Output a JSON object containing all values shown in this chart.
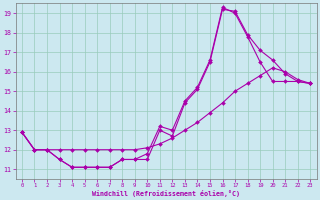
{
  "xlabel": "Windchill (Refroidissement éolien,°C)",
  "bg_color": "#cce8f0",
  "grid_color": "#99ccbb",
  "line_color": "#aa00aa",
  "xlim": [
    -0.5,
    23.5
  ],
  "ylim": [
    10.5,
    19.5
  ],
  "xticks": [
    0,
    1,
    2,
    3,
    4,
    5,
    6,
    7,
    8,
    9,
    10,
    11,
    12,
    13,
    14,
    15,
    16,
    17,
    18,
    19,
    20,
    21,
    22,
    23
  ],
  "yticks": [
    11,
    12,
    13,
    14,
    15,
    16,
    17,
    18,
    19
  ],
  "line1_x": [
    0,
    1,
    2,
    3,
    4,
    5,
    6,
    7,
    8,
    9,
    10,
    11,
    12,
    13,
    14,
    15,
    16,
    17,
    18,
    19,
    20,
    21,
    22,
    23
  ],
  "line1_y": [
    12.9,
    12.0,
    12.0,
    11.5,
    11.1,
    11.1,
    11.1,
    11.1,
    11.5,
    11.5,
    11.5,
    13.0,
    12.7,
    14.4,
    15.1,
    16.5,
    19.2,
    19.1,
    17.9,
    17.1,
    16.6,
    15.9,
    15.5,
    15.4
  ],
  "line2_x": [
    0,
    1,
    2,
    3,
    4,
    5,
    6,
    7,
    8,
    9,
    10,
    11,
    12,
    13,
    14,
    15,
    16,
    17,
    18,
    19,
    20,
    21,
    22,
    23
  ],
  "line2_y": [
    12.9,
    12.0,
    12.0,
    11.5,
    11.1,
    11.1,
    11.1,
    11.1,
    11.5,
    11.5,
    11.8,
    13.2,
    13.0,
    14.5,
    15.2,
    16.6,
    19.3,
    19.0,
    17.8,
    16.5,
    15.5,
    15.5,
    15.5,
    15.4
  ],
  "line3_x": [
    0,
    1,
    2,
    3,
    4,
    5,
    6,
    7,
    8,
    9,
    10,
    11,
    12,
    13,
    14,
    15,
    16,
    17,
    18,
    19,
    20,
    21,
    22,
    23
  ],
  "line3_y": [
    12.9,
    12.0,
    12.0,
    12.0,
    12.0,
    12.0,
    12.0,
    12.0,
    12.0,
    12.0,
    12.1,
    12.3,
    12.6,
    13.0,
    13.4,
    13.9,
    14.4,
    15.0,
    15.4,
    15.8,
    16.2,
    16.0,
    15.6,
    15.4
  ]
}
